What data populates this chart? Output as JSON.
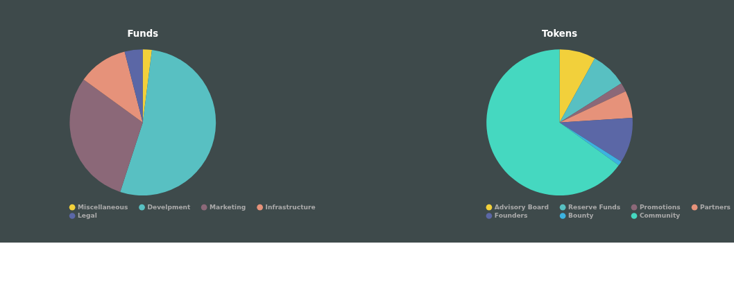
{
  "chart_data": [
    {
      "type": "pie",
      "title": "Funds",
      "categories": [
        "Miscellaneous",
        "Develpment",
        "Marketing",
        "Infrastructure",
        "Legal"
      ],
      "values": [
        2,
        53,
        30,
        11,
        4
      ],
      "colors": [
        "#f2d03b",
        "#58c0c2",
        "#8b6878",
        "#e6927a",
        "#5b67a6"
      ],
      "legend": "bottom"
    },
    {
      "type": "pie",
      "title": "Tokens",
      "categories": [
        "Advisory Board",
        "Reserve Funds",
        "Promotions",
        "Partners",
        "Founders",
        "Bounty",
        "Community"
      ],
      "values": [
        8,
        8,
        2,
        6,
        10,
        1,
        65
      ],
      "colors": [
        "#f2d03b",
        "#58c0c2",
        "#8b6878",
        "#e6927a",
        "#5b67a6",
        "#3cb2e0",
        "#45d8c0"
      ],
      "legend": "bottom"
    }
  ]
}
